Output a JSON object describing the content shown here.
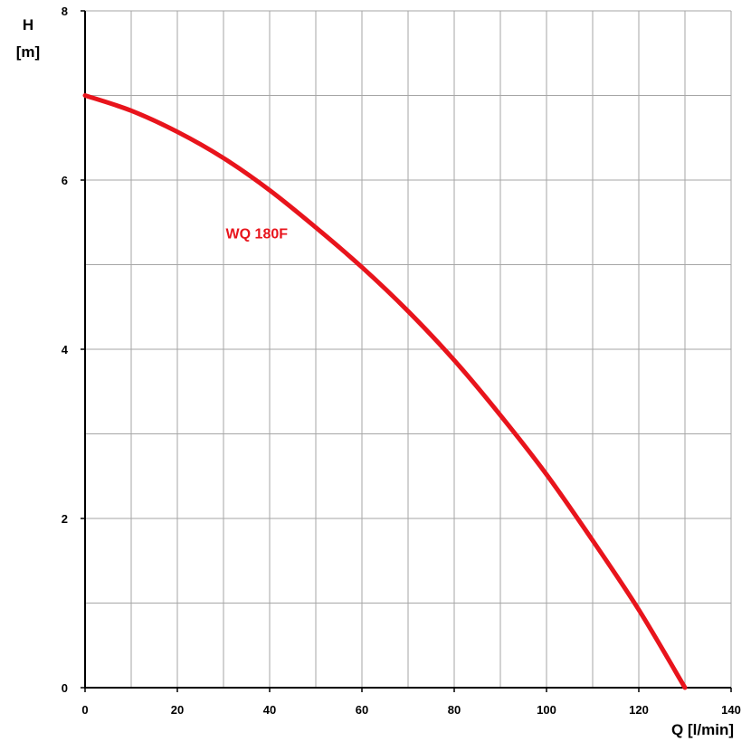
{
  "chart_data": {
    "type": "line",
    "title": "",
    "xlabel": "Q [l/min]",
    "ylabel_line1": "H",
    "ylabel_line2": "[m]",
    "xlim": [
      0,
      140
    ],
    "ylim": [
      0,
      8.0
    ],
    "x_ticks": [
      0,
      20,
      40,
      60,
      80,
      100,
      120,
      140
    ],
    "y_ticks": [
      0,
      2,
      4,
      6,
      8
    ],
    "x_minor_step": 10,
    "y_minor_step": 1,
    "grid": true,
    "series": [
      {
        "name": "WQ 180F",
        "color": "#e8141c",
        "x": [
          0,
          10,
          20,
          30,
          40,
          50,
          60,
          70,
          80,
          90,
          100,
          110,
          120,
          130
        ],
        "y": [
          7.0,
          6.82,
          6.57,
          6.26,
          5.88,
          5.44,
          4.97,
          4.45,
          3.87,
          3.22,
          2.52,
          1.74,
          0.92,
          0.0
        ]
      }
    ]
  }
}
